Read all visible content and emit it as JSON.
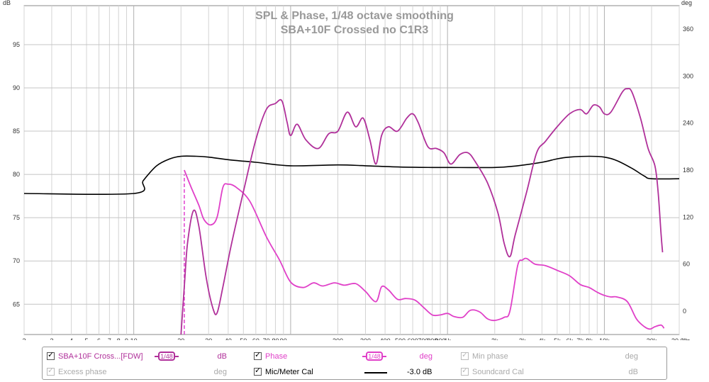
{
  "chart_data": {
    "type": "line",
    "title": "SPL & Phase, 1/48 octave smoothing",
    "subtitle": "SBA+10F Crossed no C1R3",
    "left_axis": {
      "unit": "dB",
      "range": [
        61.5,
        99.5
      ],
      "ticks": [
        65,
        70,
        75,
        80,
        85,
        90,
        95
      ]
    },
    "right_axis": {
      "unit": "deg",
      "range": [
        -30,
        390
      ],
      "ticks": [
        0,
        60,
        120,
        180,
        240,
        300,
        360
      ]
    },
    "x_axis": {
      "unit": "Hz",
      "scale": "log",
      "range": [
        2,
        30000
      ],
      "tick_labels": [
        {
          "v": 2,
          "t": "2"
        },
        {
          "v": 3,
          "t": "3"
        },
        {
          "v": 4,
          "t": "4"
        },
        {
          "v": 5,
          "t": "5"
        },
        {
          "v": 6,
          "t": "6"
        },
        {
          "v": 7,
          "t": "7"
        },
        {
          "v": 8,
          "t": "8"
        },
        {
          "v": 9,
          "t": "9"
        },
        {
          "v": 10,
          "t": "10"
        },
        {
          "v": 20,
          "t": "20"
        },
        {
          "v": 30,
          "t": "30"
        },
        {
          "v": 40,
          "t": "40"
        },
        {
          "v": 50,
          "t": "50"
        },
        {
          "v": 60,
          "t": "60"
        },
        {
          "v": 70,
          "t": "70"
        },
        {
          "v": 80,
          "t": "80"
        },
        {
          "v": 90,
          "t": "90"
        },
        {
          "v": 200,
          "t": "200"
        },
        {
          "v": 300,
          "t": "300"
        },
        {
          "v": 400,
          "t": "400"
        },
        {
          "v": 500,
          "t": "500"
        },
        {
          "v": 600,
          "t": "600"
        },
        {
          "v": 700,
          "t": "700"
        },
        {
          "v": 800,
          "t": "800"
        },
        {
          "v": 900,
          "t": "900"
        },
        {
          "v": 1000,
          "t": "1k"
        },
        {
          "v": 2000,
          "t": "2k"
        },
        {
          "v": 3000,
          "t": "3k"
        },
        {
          "v": 4000,
          "t": "4k"
        },
        {
          "v": 5000,
          "t": "5k"
        },
        {
          "v": 6000,
          "t": "6k"
        },
        {
          "v": 7000,
          "t": "7k"
        },
        {
          "v": 8000,
          "t": "8k"
        },
        {
          "v": 10000,
          "t": "10k"
        },
        {
          "v": 20000,
          "t": "20k"
        },
        {
          "v": 30000,
          "t": "30.0k"
        }
      ]
    },
    "grid": true,
    "marker": {
      "x": 21,
      "from_db": 61.5,
      "to_db": 80,
      "color": "#e040d0"
    },
    "series": [
      {
        "name": "SBA+10F Cross...[FDW]",
        "axis": "left",
        "color": "#b0309a",
        "points": [
          [
            20,
            61.5
          ],
          [
            21,
            67
          ],
          [
            22,
            72
          ],
          [
            24,
            75.8
          ],
          [
            26,
            74
          ],
          [
            29,
            68
          ],
          [
            32,
            64.5
          ],
          [
            34,
            64
          ],
          [
            37,
            67
          ],
          [
            42,
            72
          ],
          [
            50,
            78
          ],
          [
            60,
            84
          ],
          [
            70,
            87.5
          ],
          [
            80,
            88.2
          ],
          [
            88,
            88.5
          ],
          [
            95,
            86
          ],
          [
            100,
            84.5
          ],
          [
            110,
            85.8
          ],
          [
            125,
            84
          ],
          [
            150,
            83
          ],
          [
            175,
            84.7
          ],
          [
            200,
            85
          ],
          [
            230,
            87.2
          ],
          [
            260,
            85.5
          ],
          [
            290,
            86.5
          ],
          [
            320,
            84
          ],
          [
            350,
            81.2
          ],
          [
            380,
            84.5
          ],
          [
            420,
            85.5
          ],
          [
            480,
            85
          ],
          [
            550,
            86.5
          ],
          [
            600,
            87
          ],
          [
            650,
            86
          ],
          [
            750,
            83.2
          ],
          [
            850,
            83
          ],
          [
            950,
            82.5
          ],
          [
            1050,
            81.2
          ],
          [
            1200,
            82.3
          ],
          [
            1350,
            82.5
          ],
          [
            1500,
            81.5
          ],
          [
            1800,
            79
          ],
          [
            2100,
            75.5
          ],
          [
            2300,
            72
          ],
          [
            2500,
            70.5
          ],
          [
            2700,
            73
          ],
          [
            3200,
            78
          ],
          [
            3700,
            82.5
          ],
          [
            4200,
            83.8
          ],
          [
            5000,
            85.5
          ],
          [
            6000,
            87
          ],
          [
            7000,
            87.5
          ],
          [
            7700,
            87
          ],
          [
            8500,
            88
          ],
          [
            9300,
            87.8
          ],
          [
            10000,
            87
          ],
          [
            11000,
            87.2
          ],
          [
            13000,
            89.5
          ],
          [
            14000,
            89.9
          ],
          [
            15000,
            89.5
          ],
          [
            17000,
            86.5
          ],
          [
            19000,
            83
          ],
          [
            21000,
            81
          ],
          [
            22000,
            78
          ],
          [
            23000,
            73
          ],
          [
            23500,
            71
          ]
        ]
      },
      {
        "name": "Phase",
        "axis": "right",
        "color": "#e040c8",
        "points": [
          [
            21,
            180
          ],
          [
            23,
            160
          ],
          [
            26,
            135
          ],
          [
            28,
            117
          ],
          [
            31,
            110
          ],
          [
            34,
            120
          ],
          [
            37,
            158
          ],
          [
            40,
            162
          ],
          [
            45,
            158
          ],
          [
            55,
            140
          ],
          [
            70,
            95
          ],
          [
            85,
            65
          ],
          [
            100,
            37
          ],
          [
            120,
            30
          ],
          [
            140,
            36
          ],
          [
            160,
            32
          ],
          [
            190,
            36
          ],
          [
            220,
            33
          ],
          [
            260,
            35
          ],
          [
            300,
            25
          ],
          [
            350,
            12
          ],
          [
            380,
            31
          ],
          [
            420,
            27
          ],
          [
            480,
            15
          ],
          [
            540,
            16
          ],
          [
            620,
            14
          ],
          [
            700,
            5
          ],
          [
            800,
            -5
          ],
          [
            900,
            -5
          ],
          [
            1000,
            -3
          ],
          [
            1100,
            -7
          ],
          [
            1250,
            -8
          ],
          [
            1400,
            1
          ],
          [
            1600,
            -1
          ],
          [
            1800,
            -10
          ],
          [
            2000,
            -12
          ],
          [
            2300,
            -8
          ],
          [
            2500,
            0
          ],
          [
            2800,
            58
          ],
          [
            3000,
            65
          ],
          [
            3200,
            67
          ],
          [
            3600,
            60
          ],
          [
            4200,
            58
          ],
          [
            5000,
            52
          ],
          [
            6000,
            45
          ],
          [
            7000,
            34
          ],
          [
            8000,
            30
          ],
          [
            9000,
            24
          ],
          [
            10000,
            20
          ],
          [
            11000,
            18
          ],
          [
            12000,
            18
          ],
          [
            14000,
            12
          ],
          [
            16000,
            -10
          ],
          [
            18000,
            -20
          ],
          [
            19500,
            -23
          ],
          [
            21000,
            -20
          ],
          [
            23000,
            -18
          ],
          [
            24000,
            -22
          ]
        ]
      },
      {
        "name": "Mic/Meter Cal",
        "axis": "left",
        "color": "#000000",
        "points": [
          [
            2,
            77.8
          ],
          [
            10,
            77.8
          ],
          [
            11.5,
            79.3
          ],
          [
            14,
            81
          ],
          [
            17,
            81.8
          ],
          [
            20,
            82.1
          ],
          [
            25,
            82.1
          ],
          [
            30,
            82
          ],
          [
            40,
            81.7
          ],
          [
            60,
            81.4
          ],
          [
            100,
            81.0
          ],
          [
            200,
            81.1
          ],
          [
            300,
            81.0
          ],
          [
            500,
            80.85
          ],
          [
            800,
            80.8
          ],
          [
            1000,
            80.8
          ],
          [
            2000,
            80.8
          ],
          [
            2800,
            81.0
          ],
          [
            4000,
            81.4
          ],
          [
            5000,
            81.8
          ],
          [
            6000,
            82.0
          ],
          [
            8000,
            82.1
          ],
          [
            10000,
            82.0
          ],
          [
            12000,
            81.6
          ],
          [
            15000,
            80.7
          ],
          [
            18000,
            79.8
          ],
          [
            20000,
            79.5
          ],
          [
            30000,
            79.5
          ]
        ]
      }
    ]
  },
  "legend": {
    "rows": [
      [
        {
          "id": "spl",
          "checked": true,
          "enabled": true,
          "label": "SBA+10F Cross...[FDW]",
          "smoothing": "1/48",
          "unit": "dB",
          "color": "#b0309a"
        },
        {
          "id": "phase",
          "checked": true,
          "enabled": true,
          "label": "Phase",
          "smoothing": "1/48",
          "unit": "deg",
          "color": "#e040c8"
        },
        {
          "id": "minphase",
          "checked": true,
          "enabled": false,
          "label": "Min phase",
          "unit": "deg",
          "color": "#aaaaaa"
        }
      ],
      [
        {
          "id": "excess",
          "checked": true,
          "enabled": false,
          "label": "Excess phase",
          "unit": "deg",
          "color": "#aaaaaa"
        },
        {
          "id": "mic",
          "checked": true,
          "enabled": true,
          "label": "Mic/Meter Cal",
          "unit": "-3.0 dB",
          "color": "#000000"
        },
        {
          "id": "soundcard",
          "checked": true,
          "enabled": false,
          "label": "Soundcard Cal",
          "unit": "dB",
          "color": "#aaaaaa"
        }
      ]
    ]
  }
}
